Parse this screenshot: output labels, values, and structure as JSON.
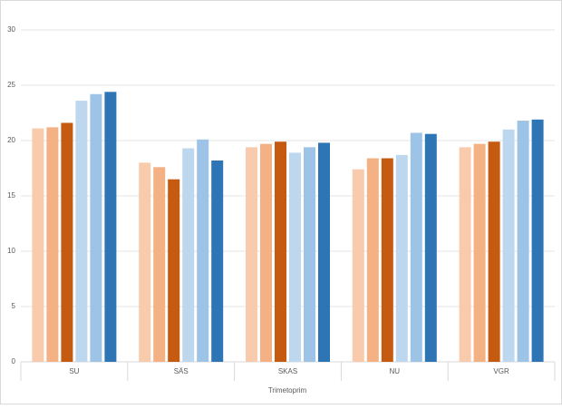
{
  "chart_data": {
    "type": "bar",
    "x_label": "Trimetoprim",
    "categories": [
      "SU",
      "SÄS",
      "SKAS",
      "NU",
      "VGR"
    ],
    "series": [
      {
        "color": "#f8cbad",
        "values": [
          21.1,
          18.0,
          19.4,
          17.4,
          19.4
        ]
      },
      {
        "color": "#f4b183",
        "values": [
          21.2,
          17.6,
          19.7,
          18.4,
          19.7
        ]
      },
      {
        "color": "#c55a11",
        "values": [
          21.6,
          16.5,
          19.9,
          18.4,
          19.9
        ]
      },
      {
        "color": "#bdd7ee",
        "values": [
          23.6,
          19.3,
          18.9,
          18.7,
          21.0
        ]
      },
      {
        "color": "#9dc3e6",
        "values": [
          24.2,
          20.1,
          19.4,
          20.7,
          21.8
        ]
      },
      {
        "color": "#2e75b6",
        "values": [
          24.4,
          18.2,
          19.8,
          20.6,
          21.9
        ]
      }
    ],
    "ylim": [
      0,
      30
    ],
    "yticks": [
      0,
      5,
      10,
      15,
      20,
      25,
      30
    ],
    "grid": true
  }
}
